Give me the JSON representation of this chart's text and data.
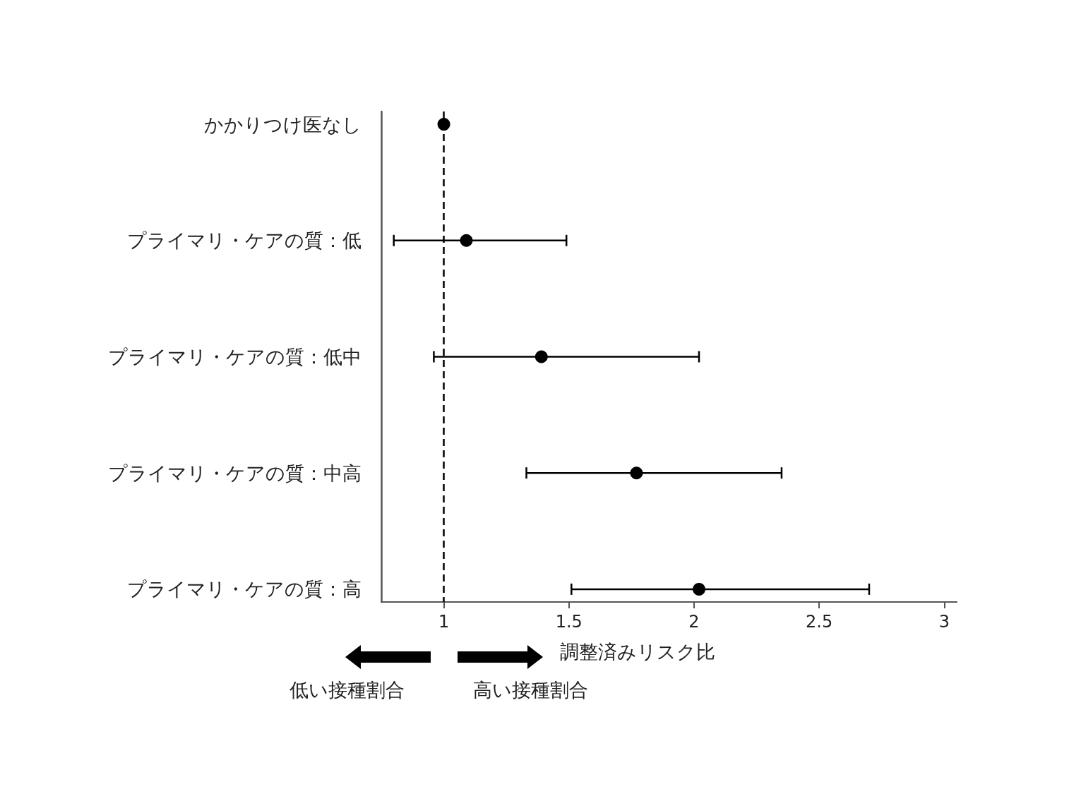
{
  "chart_data": {
    "type": "scatter",
    "orientation": "horizontal",
    "xlabel": "調整済みリスク比",
    "categories": [
      "かかりつけ医なし",
      "プライマリ・ケアの質：低",
      "プライマリ・ケアの質：低中",
      "プライマリ・ケアの質：中高",
      "プライマリ・ケアの質：高"
    ],
    "values": [
      1,
      1.09,
      1.39,
      1.77,
      2.02
    ],
    "errors": [
      null,
      [
        0.8,
        1.49
      ],
      [
        0.96,
        2.02
      ],
      [
        1.33,
        2.35
      ],
      [
        1.51,
        2.7
      ]
    ],
    "color": "#000000",
    "marker": "circle",
    "xlim": [
      0.75,
      3.05
    ],
    "xticks": [
      1,
      1.5,
      2,
      2.5,
      3
    ],
    "ref_lines": [
      {
        "axis": "x",
        "value": 1,
        "color": "#000000",
        "line_style": "dashed"
      }
    ],
    "annotations": [
      "低い接種割合",
      "高い接種割合"
    ]
  }
}
